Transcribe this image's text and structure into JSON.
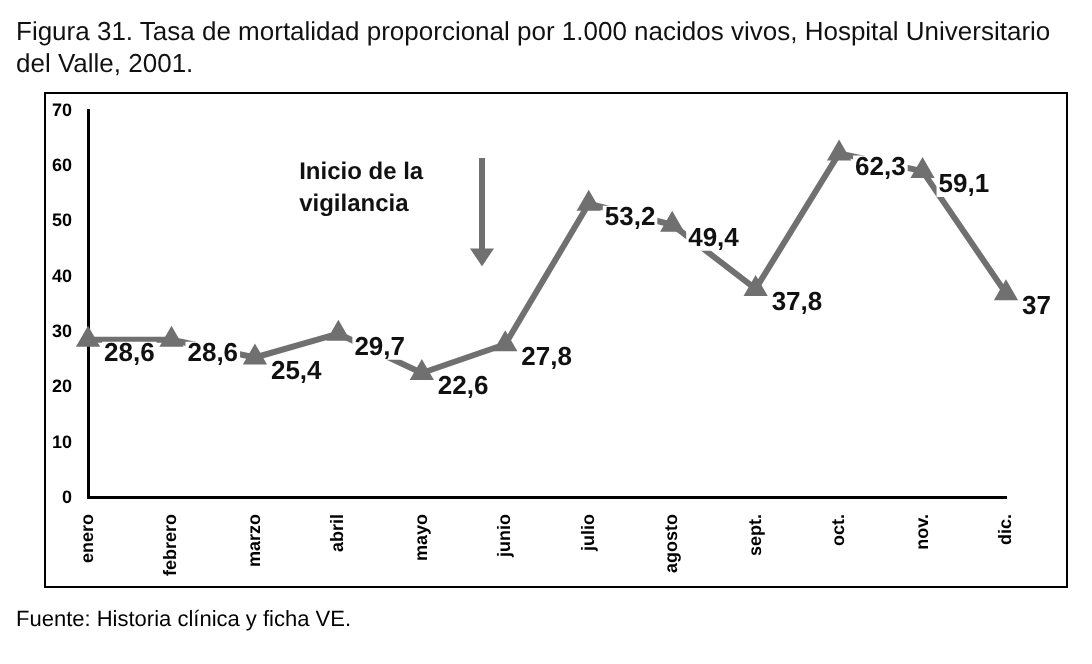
{
  "chart_data": {
    "type": "line",
    "title": "Figura 31. Tasa de mortalidad proporcional por 1.000 nacidos vivos, Hospital Universitario del Valle, 2001.",
    "categories": [
      "enero",
      "febrero",
      "marzo",
      "abril",
      "mayo",
      "junio",
      "julio",
      "agosto",
      "sept.",
      "oct.",
      "nov.",
      "dic."
    ],
    "values": [
      28.6,
      28.6,
      25.4,
      29.7,
      22.6,
      27.8,
      53.2,
      49.4,
      37.8,
      62.3,
      59.1,
      37
    ],
    "value_labels": [
      "28,6",
      "28,6",
      "25,4",
      "29,7",
      "22,6",
      "27,8",
      "53,2",
      "49,4",
      "37,8",
      "62,3",
      "59,1",
      "37"
    ],
    "color": "#707070",
    "marker": "triangle",
    "ylim": [
      0,
      70
    ],
    "yticks": [
      0,
      10,
      20,
      30,
      40,
      50,
      60,
      70
    ],
    "grid": false,
    "legend": false,
    "annotations": [
      "Inicio de la vigilancia",
      "Fuente: Historia clínica y ficha VE."
    ]
  }
}
